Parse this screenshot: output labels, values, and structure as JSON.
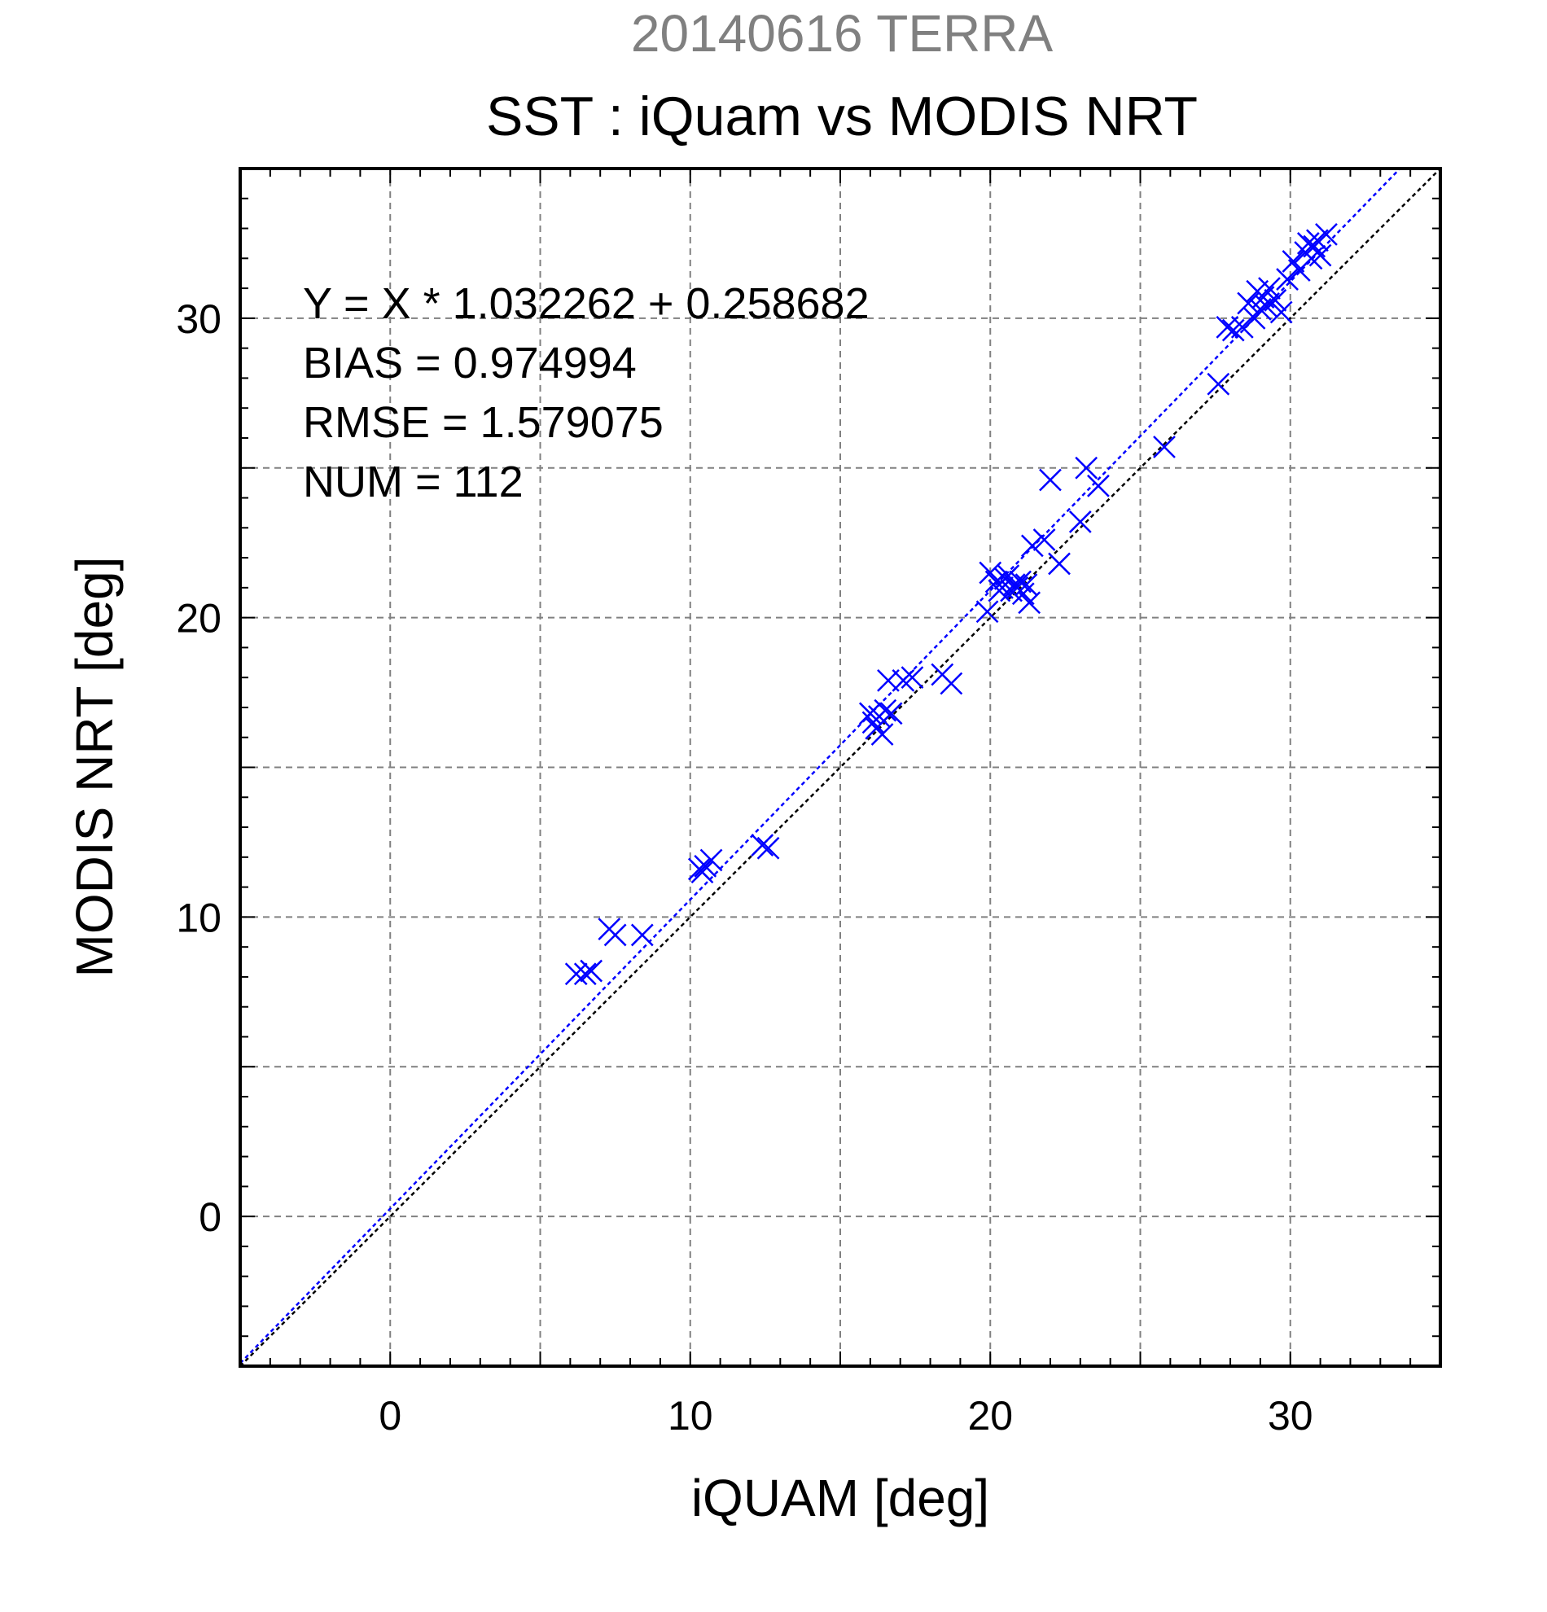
{
  "chart_data": {
    "type": "scatter",
    "suptitle": "20140616 TERRA",
    "title": "SST : iQuam vs MODIS NRT",
    "xlabel": "iQUAM [deg]",
    "ylabel": "MODIS NRT [deg]",
    "xlim": [
      -5,
      35
    ],
    "ylim": [
      -5,
      35
    ],
    "xticks": [
      0,
      10,
      20,
      30
    ],
    "yticks": [
      0,
      10,
      20,
      30
    ],
    "xtick_labels": [
      "0",
      "10",
      "20",
      "30"
    ],
    "ytick_labels": [
      "0",
      "10",
      "20",
      "30"
    ],
    "grid": true,
    "colors": {
      "points": "#0000ff",
      "fit_line": "#0000ff",
      "one_to_one": "#000000",
      "grid": "#808080",
      "suptitle": "#808080"
    },
    "fit": {
      "slope": 1.032262,
      "intercept": 0.258682
    },
    "stats": [
      "Y = X * 1.032262 + 0.258682",
      "BIAS = 0.974994",
      "RMSE = 1.579075",
      "NUM = 112"
    ],
    "series": [
      {
        "marker": "x",
        "points": [
          [
            6.2,
            8.1
          ],
          [
            6.5,
            8.1
          ],
          [
            6.7,
            8.2
          ],
          [
            7.3,
            9.6
          ],
          [
            7.5,
            9.4
          ],
          [
            8.4,
            9.4
          ],
          [
            10.3,
            11.6
          ],
          [
            10.4,
            11.5
          ],
          [
            10.5,
            11.7
          ],
          [
            10.7,
            11.9
          ],
          [
            12.4,
            12.4
          ],
          [
            12.6,
            12.3
          ],
          [
            16.0,
            16.8
          ],
          [
            16.1,
            16.5
          ],
          [
            16.2,
            16.3
          ],
          [
            16.3,
            16.7
          ],
          [
            16.4,
            16.1
          ],
          [
            16.5,
            16.9
          ],
          [
            16.6,
            17.9
          ],
          [
            16.7,
            16.8
          ],
          [
            17.1,
            17.9
          ],
          [
            17.4,
            18.0
          ],
          [
            18.4,
            18.1
          ],
          [
            18.7,
            17.8
          ],
          [
            19.9,
            20.2
          ],
          [
            20.0,
            21.5
          ],
          [
            20.2,
            21.2
          ],
          [
            20.3,
            20.9
          ],
          [
            20.4,
            21.0
          ],
          [
            20.5,
            21.3
          ],
          [
            20.6,
            21.4
          ],
          [
            20.7,
            20.9
          ],
          [
            20.8,
            21.1
          ],
          [
            20.9,
            21.0
          ],
          [
            21.0,
            21.2
          ],
          [
            21.1,
            20.8
          ],
          [
            21.2,
            21.1
          ],
          [
            21.3,
            20.5
          ],
          [
            21.4,
            22.4
          ],
          [
            21.8,
            22.6
          ],
          [
            22.0,
            24.6
          ],
          [
            22.3,
            21.8
          ],
          [
            23.0,
            23.2
          ],
          [
            23.2,
            25.0
          ],
          [
            23.6,
            24.4
          ],
          [
            25.8,
            25.7
          ],
          [
            27.6,
            27.8
          ],
          [
            27.9,
            29.7
          ],
          [
            28.1,
            29.6
          ],
          [
            28.4,
            29.7
          ],
          [
            28.6,
            30.5
          ],
          [
            28.8,
            30.0
          ],
          [
            28.9,
            30.9
          ],
          [
            29.0,
            30.3
          ],
          [
            29.1,
            30.7
          ],
          [
            29.2,
            30.4
          ],
          [
            29.3,
            31.0
          ],
          [
            29.5,
            30.6
          ],
          [
            29.7,
            30.2
          ],
          [
            29.9,
            31.3
          ],
          [
            30.1,
            31.9
          ],
          [
            30.3,
            31.6
          ],
          [
            30.5,
            32.2
          ],
          [
            30.6,
            32.5
          ],
          [
            30.7,
            32.0
          ],
          [
            30.8,
            32.4
          ],
          [
            30.9,
            32.6
          ],
          [
            31.0,
            32.1
          ],
          [
            31.2,
            32.8
          ]
        ]
      }
    ]
  }
}
